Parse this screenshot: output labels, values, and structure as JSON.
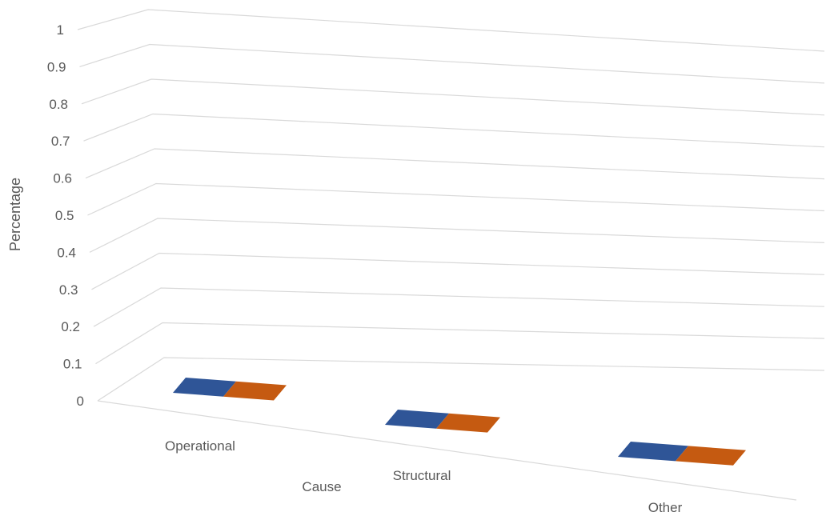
{
  "chart_data": {
    "type": "bar",
    "subtype": "3d-column",
    "categories": [
      "Operational",
      "Structural",
      "Other"
    ],
    "series": [
      {
        "values": [
          0,
          0,
          0
        ]
      },
      {
        "values": [
          0,
          0,
          0
        ]
      }
    ],
    "title": "",
    "xlabel": "Cause",
    "ylabel": "Percentage",
    "ylim": [
      0,
      1
    ],
    "yticks": [
      "0",
      "0.1",
      "0.2",
      "0.3",
      "0.4",
      "0.5",
      "0.6",
      "0.7",
      "0.8",
      "0.9",
      "1"
    ],
    "grid": true,
    "legend": "none",
    "colors": [
      "#2f5597",
      "#c55a11"
    ]
  }
}
